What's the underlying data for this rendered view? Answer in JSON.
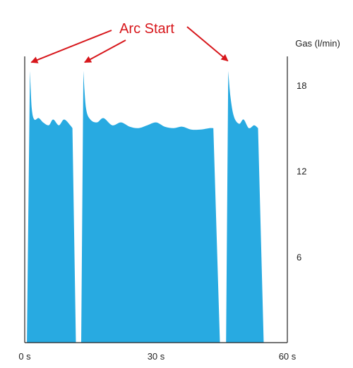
{
  "chart_data": {
    "type": "area",
    "title": "",
    "xlabel": "",
    "ylabel": "Gas (l/min)",
    "xlim": [
      0,
      60
    ],
    "ylim": [
      0,
      21
    ],
    "x_ticks": [
      {
        "value": 0,
        "label": "0 s"
      },
      {
        "value": 30,
        "label": "30 s"
      },
      {
        "value": 60,
        "label": "60 s"
      }
    ],
    "y_ticks": [
      {
        "value": 6,
        "label": "6"
      },
      {
        "value": 12,
        "label": "12"
      },
      {
        "value": 18,
        "label": "18"
      }
    ],
    "grid": false,
    "fill_color": "#28aae1",
    "axis_color": "#222222",
    "series": [
      {
        "points": [
          [
            0.5,
            0
          ],
          [
            1.2,
            19.0
          ],
          [
            1.6,
            16.4
          ],
          [
            2.2,
            15.6
          ],
          [
            3.2,
            15.7
          ],
          [
            4.2,
            15.4
          ],
          [
            5.5,
            15.2
          ],
          [
            6.5,
            15.6
          ],
          [
            7.8,
            15.2
          ],
          [
            9.0,
            15.6
          ],
          [
            10.4,
            15.2
          ],
          [
            10.9,
            15.0
          ],
          [
            11.7,
            0
          ]
        ]
      },
      {
        "points": [
          [
            12.9,
            0
          ],
          [
            13.4,
            19.0
          ],
          [
            14.0,
            16.4
          ],
          [
            15.0,
            15.6
          ],
          [
            16.5,
            15.4
          ],
          [
            18.0,
            15.7
          ],
          [
            20.0,
            15.2
          ],
          [
            22.0,
            15.4
          ],
          [
            24.0,
            15.1
          ],
          [
            26.0,
            15.0
          ],
          [
            28.0,
            15.2
          ],
          [
            30.0,
            15.4
          ],
          [
            32.0,
            15.1
          ],
          [
            34.0,
            15.0
          ],
          [
            36.0,
            15.1
          ],
          [
            38.0,
            14.9
          ],
          [
            40.2,
            14.9
          ],
          [
            42.2,
            15.0
          ],
          [
            43.1,
            15.0
          ],
          [
            44.6,
            0
          ]
        ]
      },
      {
        "points": [
          [
            46.0,
            0
          ],
          [
            46.5,
            19.0
          ],
          [
            47.0,
            17.2
          ],
          [
            47.8,
            15.8
          ],
          [
            49.0,
            15.3
          ],
          [
            50.0,
            15.6
          ],
          [
            51.2,
            15.0
          ],
          [
            52.4,
            15.2
          ],
          [
            53.3,
            15.0
          ],
          [
            54.6,
            0
          ]
        ]
      }
    ],
    "annotations": [
      {
        "text": "Arc Start",
        "arrow_targets": [
          [
            1.5,
            19.6
          ],
          [
            13.7,
            19.6
          ],
          [
            46.4,
            19.7
          ]
        ]
      }
    ]
  }
}
